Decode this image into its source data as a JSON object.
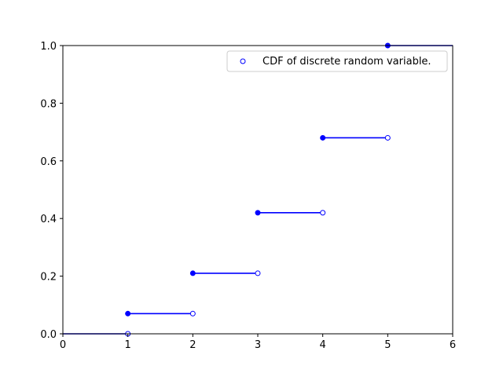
{
  "chart_data": {
    "type": "line",
    "title": "",
    "xlabel": "",
    "ylabel": "",
    "xlim": [
      0,
      6
    ],
    "ylim": [
      0,
      1
    ],
    "xticks": [
      "0",
      "1",
      "2",
      "3",
      "4",
      "5",
      "6"
    ],
    "yticks": [
      "0.0",
      "0.2",
      "0.4",
      "0.6",
      "0.8",
      "1.0"
    ],
    "grid": false,
    "legend_position": "top-right",
    "color": "#0000ff",
    "series": [
      {
        "name": "CDF of discrete random variable.",
        "steps": [
          {
            "x_start": 0,
            "x_end": 1,
            "y": 0.0
          },
          {
            "x_start": 1,
            "x_end": 2,
            "y": 0.07
          },
          {
            "x_start": 2,
            "x_end": 3,
            "y": 0.21
          },
          {
            "x_start": 3,
            "x_end": 4,
            "y": 0.42
          },
          {
            "x_start": 4,
            "x_end": 5,
            "y": 0.68
          },
          {
            "x_start": 5,
            "x_end": 6,
            "y": 1.0
          }
        ],
        "closed_points": [
          {
            "x": 1,
            "y": 0.07
          },
          {
            "x": 2,
            "y": 0.21
          },
          {
            "x": 3,
            "y": 0.42
          },
          {
            "x": 4,
            "y": 0.68
          },
          {
            "x": 5,
            "y": 1.0
          }
        ],
        "open_points": [
          {
            "x": 1,
            "y": 0.0
          },
          {
            "x": 2,
            "y": 0.07
          },
          {
            "x": 3,
            "y": 0.21
          },
          {
            "x": 4,
            "y": 0.42
          },
          {
            "x": 5,
            "y": 0.68
          }
        ]
      }
    ]
  }
}
